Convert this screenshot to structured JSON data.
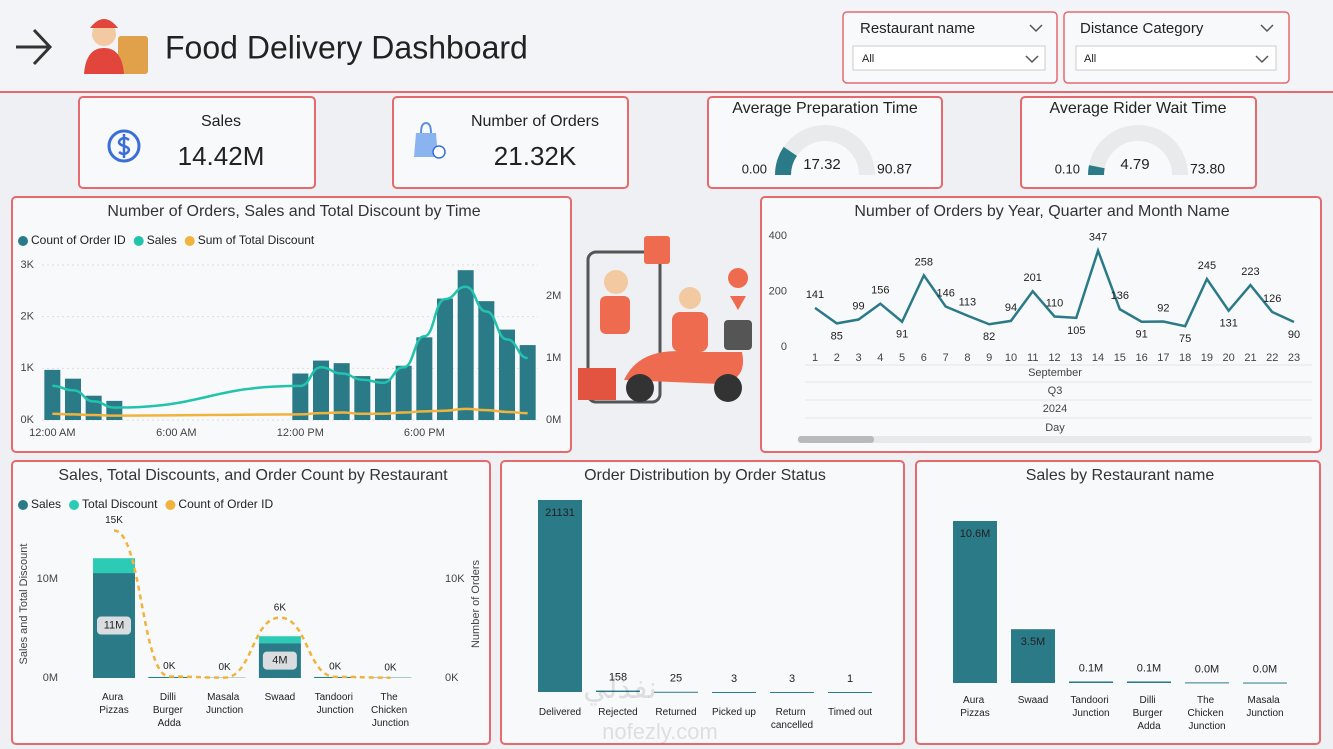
{
  "header": {
    "title": "Food Delivery Dashboard"
  },
  "filters": [
    {
      "label": "Restaurant name",
      "value": "All"
    },
    {
      "label": "Distance Category",
      "value": "All"
    }
  ],
  "kpis": [
    {
      "title": "Sales",
      "value": 14420000,
      "value_label": "14.42M"
    },
    {
      "title": "Number of Orders",
      "value": 21320,
      "value_label": "21.32K"
    }
  ],
  "gauges": [
    {
      "title": "Average Preparation Time",
      "value": 17.32,
      "min": {
        "value": 0,
        "label": "0.00"
      },
      "max": 90.87
    },
    {
      "title": "Average Rider Wait Time",
      "value": 4.79,
      "min": {
        "value": 0.1,
        "label": "0.10"
      },
      "max": {
        "value": 73.8,
        "label": "73.80"
      }
    }
  ],
  "chart_data": [
    {
      "type": "combo",
      "title": "Number of Orders, Sales and Total Discount by Time",
      "x": [
        0,
        1,
        2,
        3,
        12,
        13,
        14,
        15,
        16,
        17,
        18,
        19,
        20,
        21,
        22,
        23
      ],
      "xlim": [
        -0.5,
        23.5
      ],
      "xticks": [
        {
          "value": 0,
          "label": "12:00 AM"
        },
        {
          "value": 6,
          "label": "6:00 AM"
        },
        {
          "value": 12,
          "label": "12:00 PM"
        },
        {
          "value": 18,
          "label": "6:00 PM"
        }
      ],
      "ylim": [
        0,
        3000
      ],
      "yticks": [
        {
          "value": 0,
          "label": "0K"
        },
        {
          "value": 1000,
          "label": "1K"
        },
        {
          "value": 2000,
          "label": "2K"
        },
        {
          "value": 3000,
          "label": "3K"
        }
      ],
      "y2lim": [
        0,
        2500000
      ],
      "y2ticks": [
        {
          "value": 0,
          "label": "0M"
        },
        {
          "value": 1000000,
          "label": "1M"
        },
        {
          "value": 2000000,
          "label": "2M"
        }
      ],
      "grid": true,
      "legend": "top-left",
      "series": [
        {
          "name": "Count of Order ID",
          "type": "bar",
          "color": "#2b7a87",
          "values": [
            970,
            800,
            470,
            370,
            900,
            1150,
            1100,
            850,
            800,
            1050,
            1600,
            2350,
            2900,
            2300,
            1750,
            1450
          ]
        },
        {
          "name": "Sales",
          "type": "line",
          "axis": "y2",
          "color": "#22c3ad",
          "values": [
            550000,
            480000,
            300000,
            200000,
            550000,
            850000,
            750000,
            650000,
            600000,
            850000,
            1350000,
            1950000,
            2150000,
            1750000,
            1300000,
            1000000
          ]
        },
        {
          "name": "Sum of Total Discount",
          "type": "line",
          "axis": "y2",
          "color": "#f2b33d",
          "values": [
            100000,
            90000,
            80000,
            70000,
            90000,
            110000,
            120000,
            100000,
            100000,
            120000,
            140000,
            150000,
            180000,
            160000,
            130000,
            110000
          ]
        }
      ]
    },
    {
      "type": "line",
      "title": "Number of Orders by Year, Quarter and Month Name",
      "categories": [
        "1",
        "2",
        "3",
        "4",
        "5",
        "6",
        "7",
        "8",
        "9",
        "10",
        "11",
        "12",
        "13",
        "14",
        "15",
        "16",
        "17",
        "18",
        "19",
        "20",
        "21",
        "22",
        "23"
      ],
      "values": [
        141,
        85,
        99,
        156,
        91,
        258,
        146,
        113,
        82,
        94,
        201,
        110,
        105,
        347,
        136,
        91,
        92,
        75,
        245,
        131,
        223,
        126,
        90
      ],
      "color": "#2b7a87",
      "ylim": [
        0,
        400
      ],
      "yticks": [
        0,
        200,
        400
      ],
      "x_hierarchy": [
        "September",
        "Q3",
        "2024"
      ],
      "xlabel": "Day"
    },
    {
      "type": "combo",
      "title": "Sales, Total Discounts, and Order Count by Restaurant",
      "categories": [
        "Aura Pizzas",
        "Dilli Burger Adda",
        "Masala Junction",
        "Swaad",
        "Tandoori Junction",
        "The Chicken Junction"
      ],
      "ylabel": "Sales and Total Discount",
      "y2label": "Number of Orders",
      "ylim": [
        0,
        15000000
      ],
      "yticks": [
        {
          "value": 0,
          "label": "0M"
        },
        {
          "value": 10000000,
          "label": "10M"
        }
      ],
      "y2lim": [
        0,
        15000
      ],
      "y2ticks": [
        {
          "value": 0,
          "label": "0K"
        },
        {
          "value": 10000,
          "label": "10K"
        }
      ],
      "legend": "top-left",
      "series": [
        {
          "name": "Sales",
          "type": "bar",
          "color": "#2b7a87",
          "values": [
            10600000,
            100000,
            30000,
            3520000,
            100000,
            40000
          ],
          "value_labels": [
            "11M",
            null,
            null,
            "4M",
            null,
            null
          ]
        },
        {
          "name": "Total Discount",
          "type": "bar",
          "color": "#2ccbb5",
          "values": [
            1500000,
            10000,
            3000,
            700000,
            10000,
            4000
          ]
        },
        {
          "name": "Count of Order ID",
          "type": "line",
          "axis": "y2",
          "color": "#f2b33d",
          "values": [
            14900,
            150,
            40,
            6100,
            120,
            30
          ],
          "value_labels": [
            "15K",
            "0K",
            "0K",
            "6K",
            "0K",
            "0K"
          ]
        }
      ]
    },
    {
      "type": "bar",
      "title": "Order Distribution by Order Status",
      "categories": [
        "Delivered",
        "Rejected",
        "Returned",
        "Picked up",
        "Return cancelled",
        "Timed out"
      ],
      "values": [
        21131,
        158,
        25,
        3,
        3,
        1
      ],
      "color": "#2b7a87"
    },
    {
      "type": "bar",
      "title": "Sales by Restaurant name",
      "categories": [
        "Aura Pizzas",
        "Swaad",
        "Tandoori Junction",
        "Dilli Burger Adda",
        "The Chicken Junction",
        "Masala Junction"
      ],
      "values": [
        10600000,
        3520000,
        100000,
        100000,
        40000,
        30000
      ],
      "value_labels": [
        "10.6M",
        "3.5M",
        "0.1M",
        "0.1M",
        "0.0M",
        "0.0M"
      ],
      "color": "#2b7a87"
    }
  ],
  "watermark": {
    "arabic": "نفذلي",
    "latin": "nofezly.com"
  }
}
